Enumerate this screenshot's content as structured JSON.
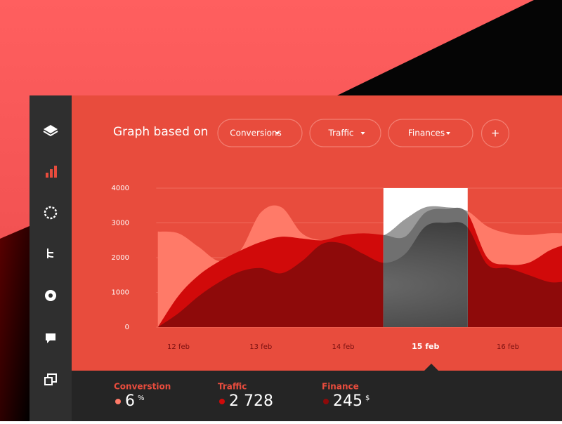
{
  "header": {
    "title": "Graph based on",
    "filters": [
      "Conversions",
      "Traffic",
      "Finances"
    ],
    "add_button": "+"
  },
  "chart_data": {
    "type": "area",
    "x": [
      11.75,
      12,
      12.25,
      12.5,
      12.75,
      13,
      13.25,
      13.5,
      13.75,
      14,
      14.25,
      14.5,
      14.75,
      15,
      15.25,
      15.5,
      15.75,
      16,
      16.25,
      16.5,
      16.66
    ],
    "xlim": [
      11.73,
      16.66
    ],
    "xticks": [
      {
        "value": 12,
        "label": "12 feb"
      },
      {
        "value": 13,
        "label": "13 feb"
      },
      {
        "value": 14,
        "label": "14 feb"
      },
      {
        "value": 15,
        "label": "15 feb"
      },
      {
        "value": 16,
        "label": "16 feb"
      }
    ],
    "highlight_x": 15,
    "series": [
      {
        "color": "#ff7a68",
        "values": [
          2750,
          2700,
          2300,
          1900,
          2200,
          3300,
          3450,
          2700,
          2500,
          2550,
          2600,
          2650,
          3100,
          3450,
          3450,
          3350,
          2900,
          2700,
          2650,
          2700,
          2700
        ]
      },
      {
        "color": "#d10a0a",
        "values": [
          0,
          900,
          1500,
          1900,
          2200,
          2450,
          2600,
          2550,
          2500,
          2650,
          2700,
          2650,
          2600,
          3300,
          3400,
          3300,
          2000,
          1800,
          1850,
          2200,
          2350
        ]
      },
      {
        "color": "#8e0a0a",
        "values": [
          0,
          400,
          900,
          1300,
          1600,
          1700,
          1550,
          1900,
          2400,
          2400,
          2100,
          1850,
          2100,
          2900,
          3000,
          2900,
          1800,
          1700,
          1500,
          1300,
          1300
        ]
      }
    ],
    "ylim": [
      0,
      4000
    ],
    "yticks": [
      0,
      1000,
      2000,
      3000,
      4000
    ],
    "grid": true
  },
  "footer": {
    "stats": [
      {
        "label": "Converstion",
        "value": "6",
        "unit": "%",
        "color": "#ff7a68"
      },
      {
        "label": "Traffic",
        "value": "2 728",
        "unit": "",
        "color": "#d10a0a"
      },
      {
        "label": "Finance",
        "value": "245",
        "unit": "$",
        "color": "#8e0a0a"
      }
    ]
  }
}
